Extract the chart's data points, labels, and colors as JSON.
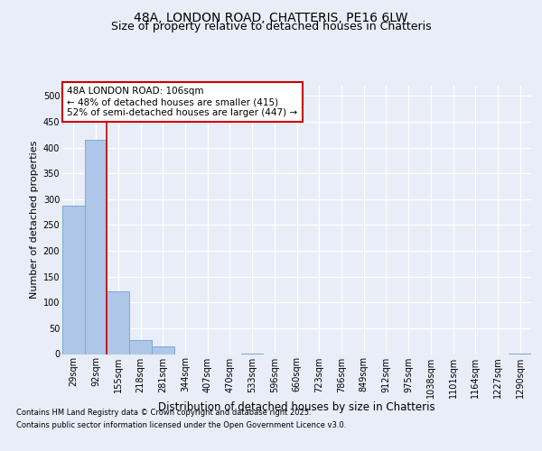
{
  "title1": "48A, LONDON ROAD, CHATTERIS, PE16 6LW",
  "title2": "Size of property relative to detached houses in Chatteris",
  "xlabel": "Distribution of detached houses by size in Chatteris",
  "ylabel": "Number of detached properties",
  "bar_labels": [
    "29sqm",
    "92sqm",
    "155sqm",
    "218sqm",
    "281sqm",
    "344sqm",
    "407sqm",
    "470sqm",
    "533sqm",
    "596sqm",
    "660sqm",
    "723sqm",
    "786sqm",
    "849sqm",
    "912sqm",
    "975sqm",
    "1038sqm",
    "1101sqm",
    "1164sqm",
    "1227sqm",
    "1290sqm"
  ],
  "bar_values": [
    287,
    415,
    122,
    27,
    15,
    0,
    0,
    0,
    1,
    0,
    0,
    0,
    0,
    0,
    0,
    0,
    0,
    0,
    0,
    0,
    1
  ],
  "bar_color": "#aec6e8",
  "bar_edge_color": "#7aabcf",
  "ylim": [
    0,
    520
  ],
  "yticks": [
    0,
    50,
    100,
    150,
    200,
    250,
    300,
    350,
    400,
    450,
    500
  ],
  "property_line_x": 1.5,
  "annotation_text": "48A LONDON ROAD: 106sqm\n← 48% of detached houses are smaller (415)\n52% of semi-detached houses are larger (447) →",
  "annotation_box_color": "#ffffff",
  "annotation_box_edge": "#cc0000",
  "line_color": "#cc0000",
  "footer1": "Contains HM Land Registry data © Crown copyright and database right 2025.",
  "footer2": "Contains public sector information licensed under the Open Government Licence v3.0.",
  "bg_color": "#e8edf7",
  "plot_bg_color": "#e8edf7",
  "title_fontsize": 10,
  "subtitle_fontsize": 9,
  "tick_fontsize": 7,
  "ylabel_fontsize": 8,
  "xlabel_fontsize": 8.5,
  "annotation_fontsize": 7.5,
  "footer_fontsize": 6
}
